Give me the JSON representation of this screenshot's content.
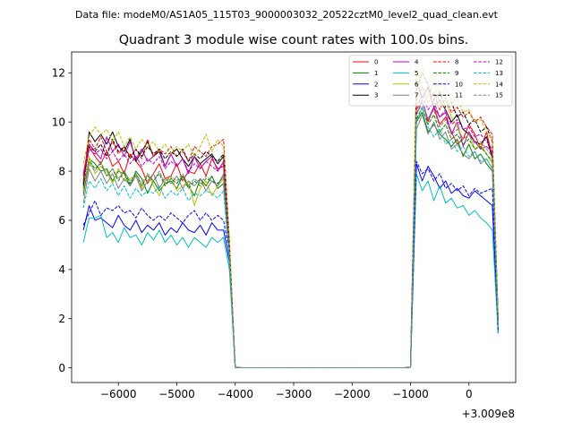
{
  "chart_data": {
    "type": "line",
    "suptitle": "Data file: modeM0/AS1A05_115T03_9000003032_20522cztM0_level2_quad_clean.evt",
    "title": "Quadrant 3 module wise count rates with 100.0s bins.",
    "xlabel": "",
    "ylabel": "",
    "x_offset_label": "+3.009e8",
    "xlim": [
      -6800,
      800
    ],
    "ylim": [
      -0.6,
      12.85
    ],
    "xticks": [
      -6000,
      -5000,
      -4000,
      -3000,
      -2000,
      -1000,
      0
    ],
    "xtick_labels": [
      "−6000",
      "−5000",
      "−4000",
      "−3000",
      "−2000",
      "−1000",
      "0"
    ],
    "yticks": [
      0,
      2,
      4,
      6,
      8,
      10,
      12
    ],
    "ytick_labels": [
      "0",
      "2",
      "4",
      "6",
      "8",
      "10",
      "12"
    ],
    "legend_location": "top-right",
    "x": [
      -6600,
      -6500,
      -6400,
      -6300,
      -6200,
      -6100,
      -6000,
      -5900,
      -5800,
      -5700,
      -5600,
      -5500,
      -5400,
      -5300,
      -5200,
      -5100,
      -5000,
      -4900,
      -4800,
      -4700,
      -4600,
      -4500,
      -4400,
      -4300,
      -4200,
      -4100,
      -4000,
      -3900,
      -3700,
      -3500,
      -3300,
      -3100,
      -2900,
      -2700,
      -2500,
      -2300,
      -2100,
      -1900,
      -1700,
      -1500,
      -1300,
      -1100,
      -1000,
      -900,
      -800,
      -700,
      -600,
      -500,
      -400,
      -300,
      -200,
      -100,
      0,
      100,
      200,
      300,
      400,
      500
    ],
    "series": [
      {
        "name": "0",
        "color": "#ff0000",
        "dash": "solid",
        "values": [
          7.6,
          9.0,
          8.6,
          8.3,
          8.8,
          8.2,
          8.4,
          7.9,
          8.7,
          8.4,
          8.1,
          7.5,
          7.9,
          8.3,
          7.7,
          7.8,
          8.3,
          7.6,
          8.0,
          7.9,
          8.3,
          7.8,
          8.5,
          8.1,
          8.2,
          4.8,
          0.02,
          0,
          0,
          0,
          0,
          0,
          0,
          0,
          0,
          0,
          0,
          0,
          0,
          0,
          0,
          0,
          0.02,
          10.5,
          10.9,
          10.0,
          10.6,
          9.9,
          10.2,
          9.6,
          9.1,
          9.3,
          9.9,
          9.5,
          8.9,
          9.6,
          8.6,
          1.9
        ]
      },
      {
        "name": "1",
        "color": "#008000",
        "dash": "solid",
        "values": [
          7.3,
          8.5,
          8.3,
          8.0,
          8.1,
          7.6,
          8.0,
          7.9,
          7.4,
          8.0,
          7.7,
          7.1,
          7.6,
          7.2,
          7.5,
          7.6,
          7.3,
          7.8,
          7.4,
          7.0,
          7.7,
          7.4,
          7.8,
          7.3,
          7.5,
          4.5,
          0.02,
          0,
          0,
          0,
          0,
          0,
          0,
          0,
          0,
          0,
          0,
          0,
          0,
          0,
          0,
          0,
          0.02,
          10.0,
          10.4,
          9.6,
          9.9,
          9.5,
          9.3,
          9.0,
          9.3,
          8.6,
          9.1,
          8.5,
          8.7,
          8.3,
          8.0,
          1.8
        ]
      },
      {
        "name": "2",
        "color": "#0000ff",
        "dash": "solid",
        "values": [
          5.6,
          6.6,
          6.0,
          6.1,
          5.9,
          5.7,
          6.2,
          5.8,
          5.6,
          6.0,
          5.5,
          5.8,
          5.6,
          5.9,
          5.4,
          5.7,
          5.5,
          5.9,
          5.6,
          5.5,
          5.8,
          5.4,
          5.9,
          5.6,
          5.6,
          4.3,
          0.02,
          0,
          0,
          0,
          0,
          0,
          0,
          0,
          0,
          0,
          0,
          0,
          0,
          0,
          0,
          0,
          0.02,
          8.3,
          7.6,
          8.2,
          7.8,
          7.3,
          7.6,
          7.1,
          7.3,
          7.0,
          6.9,
          7.2,
          7.0,
          6.8,
          6.6,
          1.4
        ]
      },
      {
        "name": "3",
        "color": "#000000",
        "dash": "solid",
        "values": [
          7.5,
          9.6,
          9.2,
          9.5,
          9.1,
          9.6,
          9.0,
          8.8,
          9.3,
          8.4,
          8.8,
          9.2,
          8.6,
          8.8,
          8.2,
          8.7,
          8.9,
          8.5,
          8.2,
          8.6,
          8.3,
          8.5,
          8.7,
          8.3,
          8.6,
          5.0,
          0.02,
          0,
          0,
          0,
          0,
          0,
          0,
          0,
          0,
          0,
          0,
          0,
          0,
          0,
          0,
          0,
          0.02,
          11.6,
          11.0,
          11.4,
          10.6,
          10.9,
          10.5,
          10.0,
          10.3,
          9.7,
          9.5,
          9.2,
          9.1,
          9.4,
          8.5,
          1.9
        ]
      },
      {
        "name": "4",
        "color": "#bf00bf",
        "dash": "solid",
        "values": [
          7.9,
          9.1,
          8.8,
          8.5,
          9.4,
          8.8,
          9.1,
          8.6,
          9.2,
          8.5,
          8.9,
          8.4,
          8.6,
          8.9,
          8.2,
          8.7,
          8.2,
          8.5,
          7.9,
          8.6,
          8.1,
          8.4,
          8.6,
          8.0,
          8.4,
          4.9,
          0.02,
          0,
          0,
          0,
          0,
          0,
          0,
          0,
          0,
          0,
          0,
          0,
          0,
          0,
          0,
          0,
          0.02,
          10.3,
          10.8,
          10.1,
          10.6,
          10.2,
          10.4,
          9.5,
          10.0,
          9.0,
          9.6,
          9.2,
          8.9,
          9.0,
          8.8,
          1.9
        ]
      },
      {
        "name": "5",
        "color": "#00bfbf",
        "dash": "solid",
        "values": [
          5.1,
          6.1,
          6.1,
          6.2,
          5.3,
          5.5,
          5.1,
          5.7,
          5.3,
          5.4,
          5.0,
          5.5,
          5.2,
          5.6,
          5.1,
          5.4,
          5.0,
          5.3,
          4.9,
          5.3,
          5.1,
          4.9,
          5.3,
          5.1,
          5.3,
          4.0,
          0.02,
          0,
          0,
          0,
          0,
          0,
          0,
          0,
          0,
          0,
          0,
          0,
          0,
          0,
          0,
          0,
          0.02,
          7.9,
          7.2,
          7.6,
          6.8,
          7.4,
          6.7,
          6.9,
          6.5,
          6.6,
          6.2,
          6.4,
          6.1,
          5.9,
          5.6,
          1.4
        ]
      },
      {
        "name": "6",
        "color": "#bfbf00",
        "dash": "solid",
        "values": [
          7.2,
          8.6,
          7.9,
          8.2,
          8.0,
          7.5,
          8.1,
          7.6,
          7.7,
          7.8,
          7.3,
          7.9,
          7.4,
          7.0,
          7.6,
          7.8,
          7.2,
          7.4,
          7.6,
          6.6,
          7.3,
          7.6,
          7.0,
          7.4,
          7.7,
          4.6,
          0.02,
          0,
          0,
          0,
          0,
          0,
          0,
          0,
          0,
          0,
          0,
          0,
          0,
          0,
          0,
          0,
          0.02,
          12.1,
          11.4,
          11.0,
          11.7,
          10.7,
          10.9,
          10.2,
          9.8,
          9.3,
          9.5,
          8.9,
          9.1,
          8.7,
          8.3,
          1.8
        ]
      },
      {
        "name": "7",
        "color": "#808080",
        "dash": "solid",
        "values": [
          6.7,
          8.1,
          7.6,
          8.0,
          7.5,
          7.9,
          7.3,
          7.7,
          7.4,
          7.8,
          7.2,
          7.6,
          7.9,
          7.3,
          7.7,
          7.5,
          7.8,
          7.3,
          7.6,
          7.4,
          7.7,
          7.2,
          7.6,
          7.4,
          7.9,
          4.4,
          0.02,
          0,
          0,
          0,
          0,
          0,
          0,
          0,
          0,
          0,
          0,
          0,
          0,
          0,
          0,
          0,
          0.02,
          9.7,
          10.3,
          9.5,
          10.0,
          9.3,
          9.6,
          8.9,
          9.1,
          8.7,
          8.5,
          8.8,
          8.3,
          8.5,
          8.1,
          1.7
        ]
      },
      {
        "name": "8",
        "color": "#ff0000",
        "dash": "dashed",
        "values": [
          7.8,
          9.3,
          8.9,
          9.4,
          8.8,
          9.2,
          8.7,
          9.0,
          8.6,
          8.9,
          8.5,
          9.3,
          8.6,
          8.9,
          8.7,
          9.0,
          8.6,
          8.8,
          8.4,
          9.0,
          8.8,
          8.6,
          9.0,
          9.1,
          9.3,
          5.2,
          0.02,
          0,
          0,
          0,
          0,
          0,
          0,
          0,
          0,
          0,
          0,
          0,
          0,
          0,
          0,
          0,
          0.02,
          11.0,
          11.4,
          10.8,
          11.2,
          10.5,
          11.0,
          10.4,
          10.6,
          10.2,
          10.4,
          10.0,
          10.2,
          9.8,
          9.5,
          2.0
        ]
      },
      {
        "name": "9",
        "color": "#008000",
        "dash": "dashed",
        "values": [
          7.1,
          8.4,
          8.1,
          8.3,
          7.8,
          8.1,
          7.6,
          8.0,
          7.5,
          7.9,
          7.4,
          7.8,
          7.6,
          7.9,
          7.4,
          7.7,
          7.5,
          7.8,
          7.3,
          7.6,
          7.4,
          7.7,
          7.6,
          7.5,
          7.8,
          4.6,
          0.02,
          0,
          0,
          0,
          0,
          0,
          0,
          0,
          0,
          0,
          0,
          0,
          0,
          0,
          0,
          0,
          0.02,
          10.1,
          10.6,
          9.9,
          10.3,
          9.6,
          9.9,
          9.3,
          9.5,
          9.1,
          9.3,
          8.9,
          9.0,
          8.7,
          8.4,
          1.9
        ]
      },
      {
        "name": "10",
        "color": "#0000ff",
        "dash": "dashed",
        "values": [
          5.8,
          6.3,
          6.8,
          6.2,
          6.5,
          6.4,
          6.6,
          6.3,
          6.4,
          6.1,
          6.5,
          6.2,
          6.0,
          6.2,
          6.0,
          6.3,
          6.1,
          5.9,
          6.2,
          6.4,
          6.0,
          6.3,
          6.0,
          6.2,
          6.0,
          4.6,
          0.02,
          0,
          0,
          0,
          0,
          0,
          0,
          0,
          0,
          0,
          0,
          0,
          0,
          0,
          0,
          0,
          0.02,
          8.4,
          7.9,
          8.1,
          7.6,
          7.9,
          7.3,
          7.5,
          7.2,
          7.4,
          7.0,
          7.3,
          7.1,
          7.2,
          7.3,
          1.5
        ]
      },
      {
        "name": "11",
        "color": "#000000",
        "dash": "dashed",
        "values": [
          7.4,
          9.0,
          8.8,
          9.1,
          8.6,
          9.3,
          8.8,
          9.0,
          8.5,
          8.9,
          8.6,
          9.0,
          8.7,
          8.9,
          8.5,
          8.8,
          8.6,
          8.9,
          8.4,
          8.7,
          8.5,
          8.8,
          8.6,
          8.4,
          8.7,
          5.0,
          0.02,
          0,
          0,
          0,
          0,
          0,
          0,
          0,
          0,
          0,
          0,
          0,
          0,
          0,
          0,
          0,
          0.02,
          11.3,
          12.0,
          11.5,
          10.9,
          11.2,
          10.6,
          10.8,
          10.2,
          10.4,
          9.9,
          10.1,
          9.6,
          9.8,
          9.2,
          2.0
        ]
      },
      {
        "name": "12",
        "color": "#bf00bf",
        "dash": "dashed",
        "values": [
          7.6,
          8.9,
          8.7,
          8.9,
          8.5,
          8.8,
          8.4,
          8.7,
          8.3,
          8.6,
          8.2,
          8.5,
          8.3,
          8.6,
          8.1,
          8.4,
          8.2,
          8.5,
          8.0,
          8.3,
          8.1,
          8.4,
          8.2,
          8.0,
          8.3,
          4.8,
          0.02,
          0,
          0,
          0,
          0,
          0,
          0,
          0,
          0,
          0,
          0,
          0,
          0,
          0,
          0,
          0,
          0.02,
          10.6,
          11.1,
          10.5,
          10.8,
          10.2,
          10.5,
          9.9,
          10.1,
          9.7,
          9.8,
          9.4,
          9.5,
          9.2,
          8.9,
          1.9
        ]
      },
      {
        "name": "13",
        "color": "#00bfbf",
        "dash": "dashed",
        "values": [
          6.5,
          7.6,
          7.3,
          7.7,
          7.2,
          7.5,
          7.0,
          7.4,
          6.9,
          7.3,
          7.0,
          7.2,
          7.1,
          7.4,
          6.9,
          7.2,
          7.0,
          7.3,
          6.8,
          7.1,
          7.0,
          7.2,
          7.1,
          6.9,
          7.2,
          4.3,
          0.02,
          0,
          0,
          0,
          0,
          0,
          0,
          0,
          0,
          0,
          0,
          0,
          0,
          0,
          0,
          0,
          0.02,
          10.0,
          10.6,
          9.8,
          9.4,
          9.7,
          9.1,
          9.3,
          8.8,
          9.0,
          8.6,
          8.8,
          8.4,
          8.5,
          8.1,
          1.7
        ]
      },
      {
        "name": "14",
        "color": "#bfbf00",
        "dash": "dashed",
        "values": [
          8.3,
          9.4,
          9.8,
          9.5,
          9.7,
          9.2,
          9.6,
          9.0,
          9.4,
          8.9,
          9.3,
          9.0,
          9.2,
          8.8,
          9.1,
          8.7,
          9.0,
          8.8,
          9.1,
          8.6,
          9.0,
          9.5,
          8.8,
          9.3,
          9.0,
          5.3,
          0.02,
          0,
          0,
          0,
          0,
          0,
          0,
          0,
          0,
          0,
          0,
          0,
          0,
          0,
          0,
          0,
          0.02,
          11.8,
          12.2,
          11.6,
          11.9,
          11.2,
          11.4,
          10.8,
          11.0,
          10.4,
          10.5,
          10.0,
          10.1,
          9.6,
          9.3,
          2.1
        ]
      },
      {
        "name": "15",
        "color": "#808080",
        "dash": "dashed",
        "values": [
          7.0,
          8.3,
          8.0,
          8.4,
          7.8,
          8.1,
          7.7,
          8.0,
          7.6,
          7.9,
          7.5,
          7.9,
          7.6,
          8.0,
          7.5,
          7.8,
          7.6,
          7.9,
          7.4,
          7.7,
          7.5,
          7.8,
          7.6,
          7.4,
          7.8,
          4.6,
          0.02,
          0,
          0,
          0,
          0,
          0,
          0,
          0,
          0,
          0,
          0,
          0,
          0,
          0,
          0,
          0,
          0.02,
          10.3,
          10.9,
          10.1,
          10.5,
          9.8,
          10.1,
          9.5,
          9.7,
          9.3,
          9.5,
          9.1,
          9.2,
          8.9,
          8.6,
          1.8
        ]
      }
    ]
  }
}
